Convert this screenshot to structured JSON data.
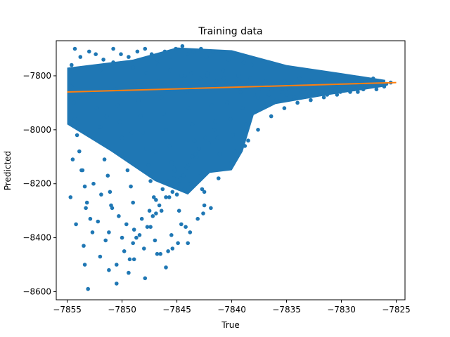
{
  "chart_data": {
    "type": "scatter",
    "title": "Training data",
    "xlabel": "True",
    "ylabel": "Predicted",
    "xlim": [
      -7856,
      -7824.2
    ],
    "ylim": [
      -8630,
      -7670
    ],
    "xticks": [
      -7855,
      -7850,
      -7845,
      -7840,
      -7835,
      -7830,
      -7825
    ],
    "yticks": [
      -8600,
      -8400,
      -8200,
      -8000,
      -7800
    ],
    "grid": false,
    "colors": {
      "points": "#1f77b4",
      "fit_line": "#ff7f0e"
    },
    "fit_line": {
      "x": [
        -7855,
        -7825
      ],
      "y": [
        -7855,
        -7825
      ]
    },
    "series": [
      {
        "x": [
          -7854.6,
          -7854.4,
          -7854.3,
          -7854.1,
          -7853.9,
          -7853.7,
          -7853.4,
          -7853.2,
          -7852.9,
          -7852.7,
          -7852.5,
          -7852.3,
          -7852.0,
          -7851.8,
          -7851.6,
          -7851.3,
          -7851.1,
          -7850.9,
          -7850.6,
          -7850.4,
          -7850.2,
          -7850.0,
          -7849.7,
          -7849.5,
          -7849.2,
          -7849.0,
          -7848.8,
          -7848.5,
          -7848.3,
          -7848.1,
          -7847.8,
          -7847.6,
          -7847.4,
          -7847.1,
          -7846.9,
          -7846.7,
          -7846.4,
          -7846.2,
          -7846.0,
          -7845.7,
          -7845.5,
          -7845.3,
          -7845.0,
          -7844.8,
          -7844.6,
          -7844.3,
          -7844.1,
          -7843.9,
          -7843.6,
          -7843.4,
          -7843.2,
          -7842.9,
          -7842.7,
          -7842.5,
          -7842.2,
          -7842.0,
          -7841.8,
          -7841.5,
          -7841.3,
          -7841.1,
          -7840.8,
          -7840.6,
          -7840.4,
          -7840.1,
          -7839.9,
          -7839.7,
          -7839.4,
          -7839.2,
          -7839.0,
          -7838.7,
          -7838.5,
          -7838.3,
          -7838.0,
          -7837.8,
          -7837.6,
          -7837.3,
          -7837.1,
          -7836.9,
          -7836.6,
          -7836.4,
          -7836.2,
          -7835.9,
          -7835.7,
          -7835.5,
          -7835.2,
          -7835.0,
          -7834.8,
          -7834.5,
          -7834.3,
          -7834.1,
          -7833.8,
          -7833.6,
          -7833.4,
          -7833.1,
          -7832.9,
          -7832.7,
          -7832.4,
          -7832.2,
          -7832.0,
          -7831.7,
          -7831.5,
          -7831.3,
          -7831.0,
          -7830.8,
          -7830.6,
          -7830.3,
          -7830.1,
          -7829.9,
          -7829.6,
          -7829.4,
          -7829.2,
          -7828.9,
          -7828.7,
          -7828.5,
          -7828.2,
          -7828.0,
          -7827.8,
          -7827.5,
          -7827.3,
          -7827.1,
          -7826.8,
          -7826.6,
          -7826.4,
          -7826.1,
          -7825.9,
          -7825.5,
          -7853.5,
          -7852.0,
          -7850.5,
          -7849.3,
          -7848.0,
          -7847.0,
          -7846.5,
          -7845.5,
          -7844.9,
          -7844.2,
          -7843.8,
          -7843.1,
          -7842.6,
          -7841.9,
          -7854.3,
          -7853.8,
          -7853.0,
          -7852.4,
          -7851.7,
          -7850.8,
          -7850.1,
          -7849.4,
          -7848.6,
          -7847.9,
          -7847.3,
          -7846.8,
          -7846.1,
          -7845.6,
          -7845.1,
          -7844.5,
          -7844.0,
          -7843.5,
          -7842.8,
          -7842.3,
          -7841.7,
          -7841.0,
          -7840.3,
          -7839.6,
          -7838.9,
          -7838.2,
          -7854.5,
          -7853.6,
          -7852.6,
          -7851.9,
          -7851.0,
          -7850.3,
          -7849.6,
          -7848.9,
          -7848.2,
          -7847.5,
          -7846.9,
          -7846.3,
          -7845.8,
          -7845.2,
          -7844.7,
          -7844.1,
          -7843.6,
          -7843.0,
          -7842.4,
          -7841.6,
          -7854.7,
          -7853.3,
          -7852.2,
          -7851.2,
          -7850.0,
          -7849.0,
          -7848.4,
          -7847.7,
          -7847.2,
          -7846.6,
          -7846.0,
          -7845.4,
          -7844.8,
          -7844.4,
          -7843.9,
          -7843.3,
          -7842.1,
          -7854.2,
          -7851.5,
          -7849.8,
          -7848.7,
          -7847.4,
          -7846.4,
          -7845.7,
          -7844.3,
          -7853.4,
          -7851.2,
          -7848.9,
          -7846.8,
          -7845.4,
          -7844.0,
          -7853.1,
          -7850.5,
          -7847.9,
          -7846.0,
          -7849.4,
          -7845.8,
          -7854.6,
          -7852.0,
          -7850.8,
          -7849.0,
          -7847.8,
          -7846.7,
          -7845.6,
          -7844.6,
          -7843.7,
          -7842.9,
          -7842.2,
          -7841.4,
          -7840.7,
          -7840.0,
          -7839.3,
          -7838.6,
          -7837.9,
          -7837.2,
          -7836.5,
          -7835.8,
          -7835.1,
          -7834.4,
          -7833.7,
          -7833.0,
          -7832.3,
          -7831.6,
          -7830.9,
          -7830.2,
          -7829.5,
          -7828.8,
          -7828.1,
          -7827.4,
          -7826.7,
          -7826.0,
          -7853.9,
          -7851.4,
          -7849.1,
          -7847.0,
          -7845.3,
          -7843.8,
          -7842.5,
          -7841.2,
          -7840.0,
          -7838.8,
          -7837.6,
          -7836.4,
          -7835.2,
          -7834.0,
          -7832.8,
          -7831.6,
          -7830.4,
          -7829.2,
          -7828.0,
          -7826.8
        ],
        "y": [
          -7840,
          -7900,
          -7960,
          -8020,
          -8080,
          -8150,
          -8210,
          -8270,
          -8330,
          -8380,
          -7860,
          -7920,
          -7990,
          -8050,
          -8110,
          -8170,
          -8230,
          -8290,
          -7850,
          -7910,
          -7970,
          -8030,
          -8090,
          -8150,
          -8210,
          -8270,
          -7830,
          -7890,
          -7950,
          -8010,
          -8070,
          -8130,
          -8190,
          -8250,
          -8310,
          -7820,
          -7880,
          -7940,
          -8000,
          -8060,
          -8120,
          -8180,
          -8240,
          -8300,
          -8350,
          -7800,
          -7860,
          -7920,
          -7980,
          -8040,
          -8100,
          -8160,
          -8220,
          -8280,
          -7790,
          -7850,
          -7910,
          -7970,
          -8030,
          -8090,
          -7780,
          -7840,
          -7900,
          -7960,
          -8020,
          -8080,
          -7800,
          -7860,
          -7920,
          -7980,
          -8040,
          -7810,
          -7870,
          -7930,
          -7880,
          -7840,
          -7900,
          -7820,
          -7870,
          -7850,
          -7830,
          -7890,
          -7840,
          -7860,
          -7820,
          -7870,
          -7850,
          -7830,
          -7880,
          -7840,
          -7810,
          -7860,
          -7830,
          -7850,
          -7870,
          -7820,
          -7840,
          -7860,
          -7830,
          -7850,
          -7810,
          -7870,
          -7840,
          -7820,
          -7850,
          -7830,
          -7860,
          -7840,
          -7820,
          -7850,
          -7830,
          -7840,
          -7810,
          -7860,
          -7830,
          -7850,
          -7820,
          -7840,
          -7830,
          -7810,
          -7850,
          -7830,
          -7820,
          -7840,
          -7830,
          -7825,
          -8430,
          -8470,
          -8500,
          -8480,
          -8440,
          -8410,
          -8460,
          -8390,
          -8420,
          -8360,
          -8380,
          -8330,
          -8310,
          -8290,
          -7700,
          -7730,
          -7710,
          -7720,
          -7740,
          -7700,
          -7720,
          -7730,
          -7710,
          -7700,
          -7720,
          -7740,
          -7710,
          -7730,
          -7700,
          -7690,
          -7720,
          -7710,
          -7700,
          -7730,
          -7710,
          -7720,
          -7740,
          -7730,
          -7750,
          -7760,
          -8110,
          -8150,
          -8200,
          -8240,
          -8280,
          -8320,
          -8350,
          -8370,
          -8330,
          -8300,
          -8260,
          -8220,
          -8190,
          -8150,
          -8180,
          -8140,
          -8100,
          -8070,
          -8030,
          -8000,
          -8250,
          -8290,
          -8340,
          -8380,
          -8400,
          -8420,
          -8390,
          -8360,
          -8320,
          -8280,
          -8250,
          -8230,
          -8200,
          -8170,
          -8130,
          -8090,
          -8050,
          -8350,
          -8410,
          -8450,
          -8400,
          -8360,
          -8300,
          -8250,
          -8220,
          -8500,
          -8520,
          -8480,
          -8460,
          -8440,
          -8420,
          -8590,
          -8570,
          -8550,
          -8510,
          -8530,
          -8450,
          -7760,
          -7780,
          -7750,
          -7770,
          -7790,
          -7760,
          -7780,
          -7800,
          -7790,
          -7810,
          -7800,
          -7820,
          -7810,
          -7830,
          -7820,
          -7840,
          -7830,
          -7850,
          -7840,
          -7830,
          -7850,
          -7840,
          -7860,
          -7850,
          -7870,
          -7860,
          -7850,
          -7840,
          -7830,
          -7850,
          -7840,
          -7830,
          -7820,
          -7830,
          -7880,
          -7950,
          -8010,
          -8080,
          -8140,
          -8200,
          -8230,
          -8180,
          -8120,
          -8060,
          -8000,
          -7950,
          -7920,
          -7900,
          -7890,
          -7880,
          -7870,
          -7860,
          -7850,
          -7840
        ]
      }
    ]
  }
}
